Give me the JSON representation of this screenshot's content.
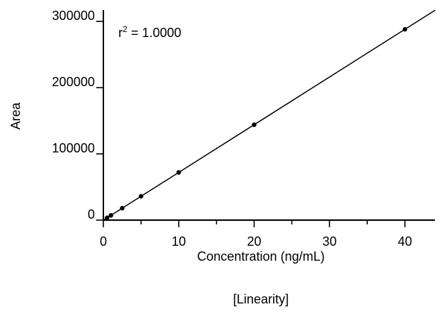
{
  "chart_data": {
    "type": "scatter",
    "xlabel": "Concentration (ng/mL)",
    "ylabel": "Area",
    "caption": "[Linearity]",
    "annotation": {
      "r_symbol": "r",
      "r_exponent": "2",
      "r_value": " = 1.0000"
    },
    "xlim": [
      0,
      44
    ],
    "ylim": [
      0,
      310000
    ],
    "x_ticks": [
      0,
      10,
      20,
      30,
      40
    ],
    "x_tick_labels": [
      "0",
      "10",
      "20",
      "30",
      "40"
    ],
    "y_ticks": [
      0,
      100000,
      200000,
      300000
    ],
    "y_tick_labels": [
      "0",
      "100000",
      "200000",
      "300000"
    ],
    "x_minor_step": 5,
    "grid": false,
    "series": [
      {
        "x": [
          0.5,
          1,
          2.5,
          5,
          10,
          20,
          40
        ],
        "y": [
          3600,
          7200,
          18000,
          36000,
          72000,
          144000,
          288000
        ]
      }
    ],
    "fit_line": {
      "x": [
        0,
        44
      ],
      "y": [
        0,
        316800
      ]
    }
  }
}
